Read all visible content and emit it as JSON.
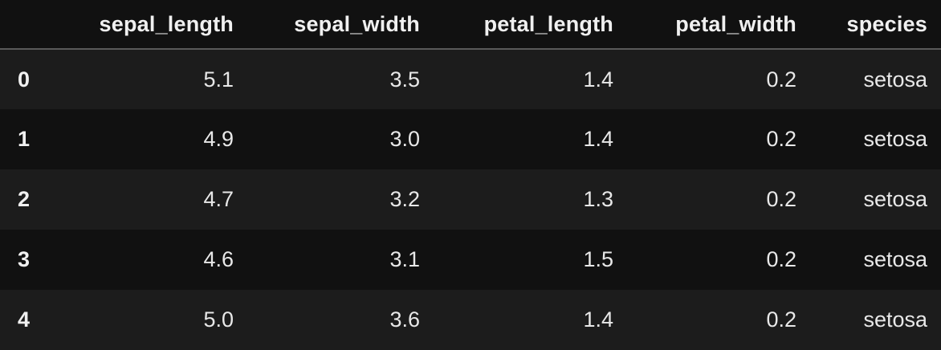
{
  "table": {
    "index_header": "",
    "columns": [
      "sepal_length",
      "sepal_width",
      "petal_length",
      "petal_width",
      "species"
    ],
    "rows": [
      {
        "index": "0",
        "cells": [
          "5.1",
          "3.5",
          "1.4",
          "0.2",
          "setosa"
        ]
      },
      {
        "index": "1",
        "cells": [
          "4.9",
          "3.0",
          "1.4",
          "0.2",
          "setosa"
        ]
      },
      {
        "index": "2",
        "cells": [
          "4.7",
          "3.2",
          "1.3",
          "0.2",
          "setosa"
        ]
      },
      {
        "index": "3",
        "cells": [
          "4.6",
          "3.1",
          "1.5",
          "0.2",
          "setosa"
        ]
      },
      {
        "index": "4",
        "cells": [
          "5.0",
          "3.6",
          "1.4",
          "0.2",
          "setosa"
        ]
      }
    ]
  },
  "colors": {
    "background": "#111111",
    "row_stripe": "#1c1c1c",
    "text": "#ececec",
    "header_rule": "#5a5a5a"
  }
}
